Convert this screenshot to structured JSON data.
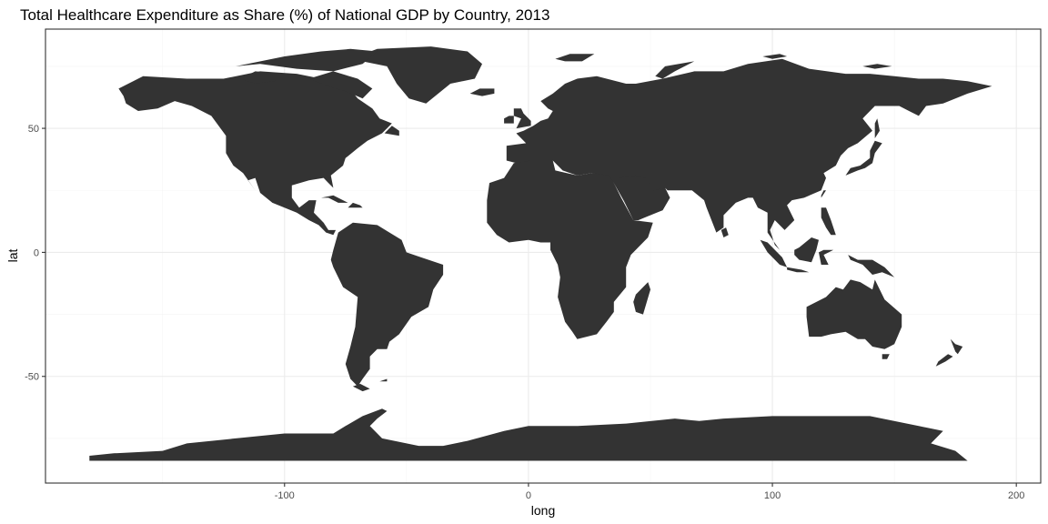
{
  "chart_data": {
    "type": "map",
    "title": "Total Healthcare Expenditure as Share (%) of National GDP by Country, 2013",
    "xlabel": "long",
    "ylabel": "lat",
    "xlim": [
      -198,
      210
    ],
    "ylim": [
      -93,
      90
    ],
    "x_ticks": [
      -100,
      0,
      100,
      200
    ],
    "x_tick_labels": [
      "-100",
      "0",
      "100",
      "200"
    ],
    "y_ticks": [
      -50,
      0,
      50
    ],
    "y_tick_labels": [
      "-50",
      "0",
      "50"
    ],
    "grid": true,
    "land_color": "#333333",
    "panel_border_color": "#333333",
    "grid_major_color": "#ebebeb",
    "grid_minor_color": "#f5f5f5",
    "legend": "none"
  }
}
